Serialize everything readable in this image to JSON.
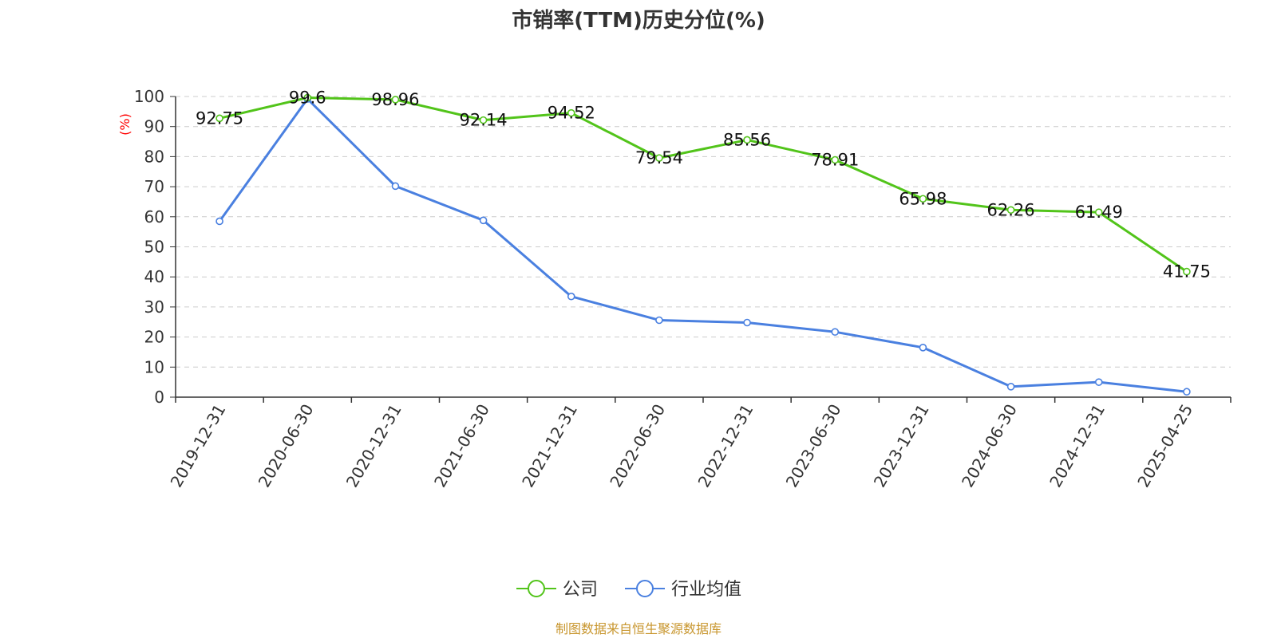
{
  "chart_data": {
    "type": "line",
    "title": "市销率(TTM)历史分位(%)",
    "ylabel": "(%)",
    "xlabel": "",
    "ylim": [
      0,
      100
    ],
    "yticks": [
      0,
      10,
      20,
      30,
      40,
      50,
      60,
      70,
      80,
      90,
      100
    ],
    "categories": [
      "2019-12-31",
      "2020-06-30",
      "2020-12-31",
      "2021-06-30",
      "2021-12-31",
      "2022-06-30",
      "2022-12-31",
      "2023-06-30",
      "2023-12-31",
      "2024-06-30",
      "2024-12-31",
      "2025-04-25"
    ],
    "series": [
      {
        "name": "公司",
        "color": "#52c41a",
        "show_labels": true,
        "values": [
          92.75,
          99.6,
          98.96,
          92.14,
          94.52,
          79.54,
          85.56,
          78.91,
          65.98,
          62.26,
          61.49,
          41.75
        ]
      },
      {
        "name": "行业均值",
        "color": "#4a80e0",
        "show_labels": false,
        "values": [
          58.5,
          99.2,
          70.2,
          58.8,
          33.5,
          25.6,
          24.8,
          21.7,
          16.5,
          3.5,
          5.0,
          1.8
        ]
      }
    ],
    "grid": true,
    "legend_position": "bottom-center",
    "source": "制图数据来自恒生聚源数据库"
  }
}
